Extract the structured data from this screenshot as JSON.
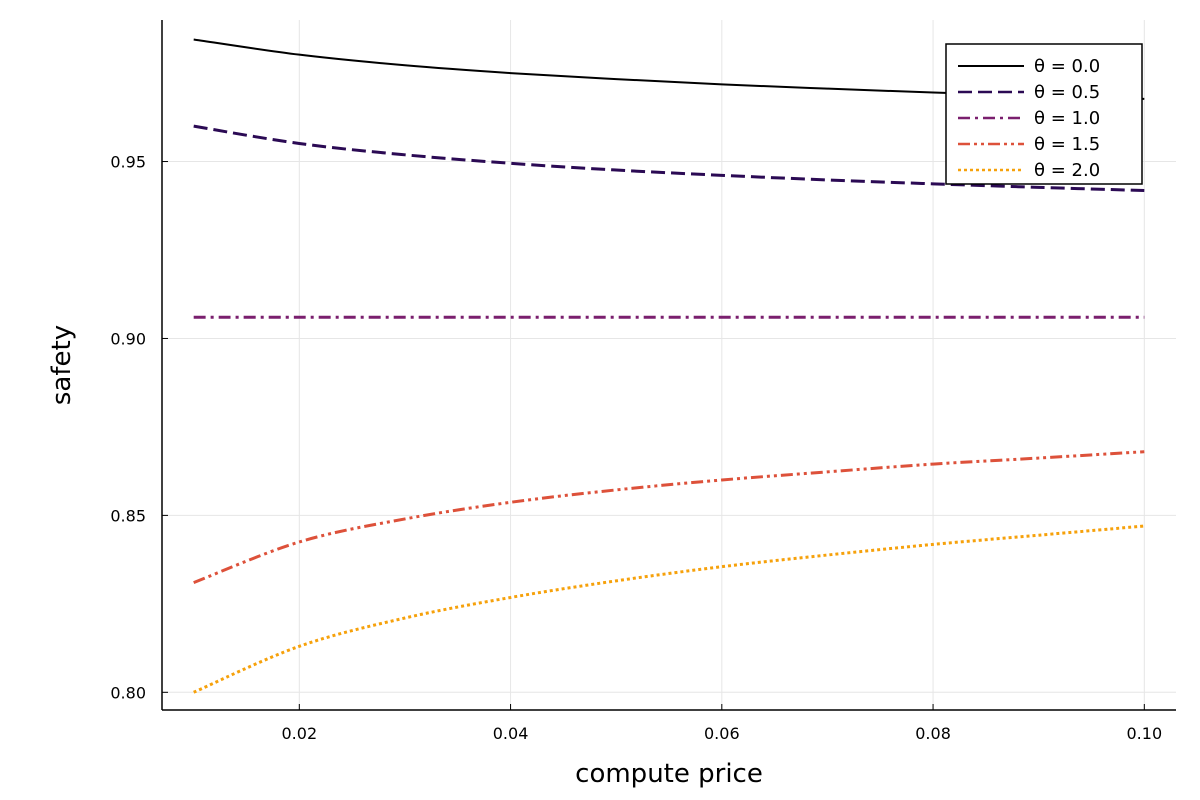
{
  "chart_data": {
    "type": "line",
    "xlabel": "compute price",
    "ylabel": "safety",
    "xlim": [
      0.007,
      0.103
    ],
    "ylim": [
      0.795,
      0.99
    ],
    "xticks": [
      0.02,
      0.04,
      0.06,
      0.08,
      0.1
    ],
    "xtick_labels": [
      "0.02",
      "0.04",
      "0.06",
      "0.08",
      "0.10"
    ],
    "yticks": [
      0.8,
      0.85,
      0.9,
      0.95
    ],
    "ytick_labels": [
      "0.80",
      "0.85",
      "0.90",
      "0.95"
    ],
    "grid": true,
    "legend_position": "top-right",
    "x": [
      0.01,
      0.02,
      0.03,
      0.04,
      0.05,
      0.06,
      0.07,
      0.08,
      0.09,
      0.1
    ],
    "series": [
      {
        "name": "θ = 0.0",
        "color": "#000000",
        "style": "solid",
        "values": [
          0.9845,
          0.9802,
          0.9772,
          0.975,
          0.9733,
          0.9718,
          0.9706,
          0.9695,
          0.9686,
          0.9677
        ]
      },
      {
        "name": "θ = 0.5",
        "color": "#2b0a54",
        "style": "dash",
        "values": [
          0.96,
          0.9551,
          0.9519,
          0.9495,
          0.9476,
          0.9461,
          0.9448,
          0.9437,
          0.9427,
          0.9418
        ]
      },
      {
        "name": "θ = 1.0",
        "color": "#7a1f6e",
        "style": "dashdot",
        "values": [
          0.906,
          0.906,
          0.906,
          0.906,
          0.906,
          0.906,
          0.906,
          0.906,
          0.906,
          0.906
        ]
      },
      {
        "name": "θ = 1.5",
        "color": "#dd513a",
        "style": "dashdotdot",
        "values": [
          0.831,
          0.8425,
          0.849,
          0.8537,
          0.8572,
          0.86,
          0.8623,
          0.8645,
          0.8662,
          0.868
        ]
      },
      {
        "name": "θ = 2.0",
        "color": "#f6a10b",
        "style": "dot",
        "values": [
          0.8,
          0.813,
          0.821,
          0.8268,
          0.8315,
          0.8355,
          0.8388,
          0.8418,
          0.8444,
          0.847
        ]
      }
    ]
  }
}
